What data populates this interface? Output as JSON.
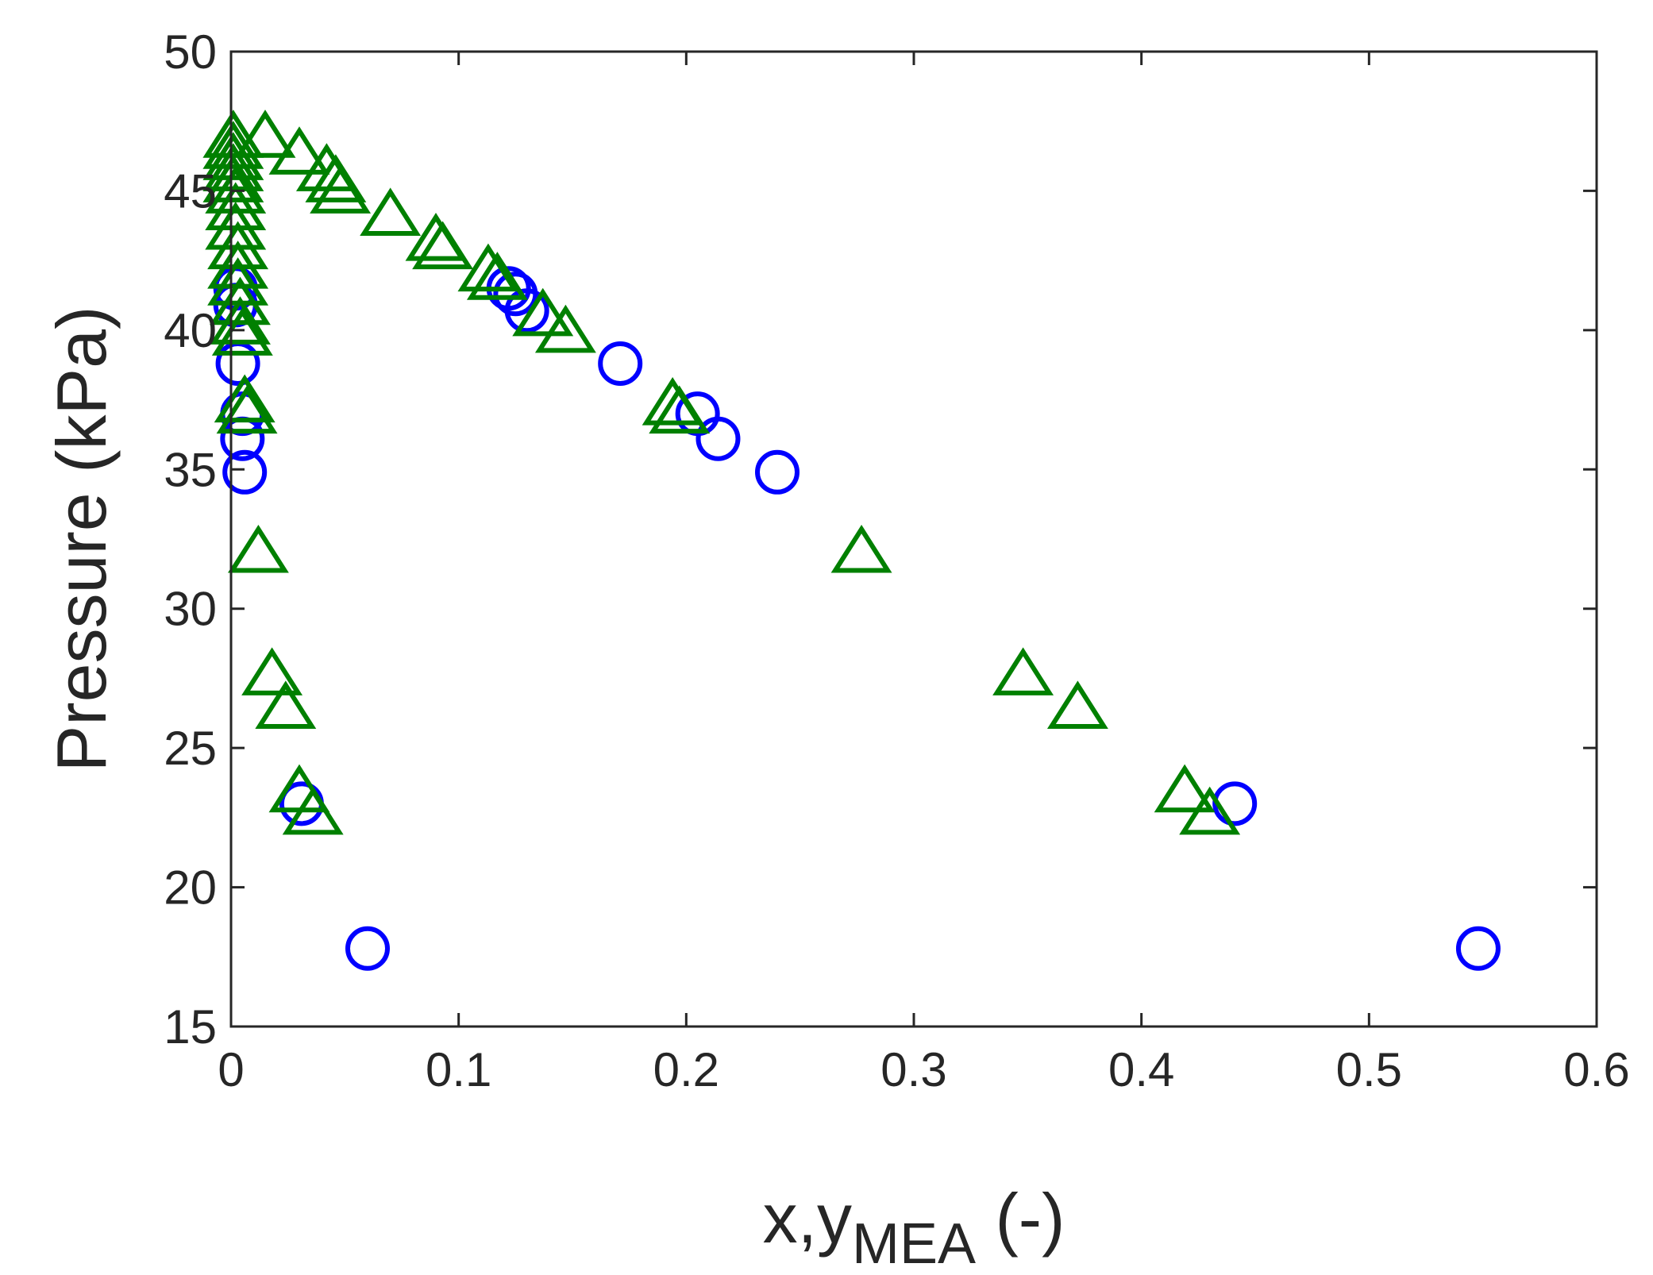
{
  "chart_data": {
    "type": "scatter",
    "title": "",
    "xlabel": "x,y",
    "xlabel_subscript": "MEA",
    "xlabel_suffix": " (-)",
    "ylabel": "Pressure (kPa)",
    "xlim": [
      0,
      0.6
    ],
    "ylim": [
      15,
      50
    ],
    "grid": false,
    "x_ticks": [
      0,
      0.1,
      0.2,
      0.3,
      0.4,
      0.5,
      0.6
    ],
    "x_tick_labels": [
      "0",
      "0.1",
      "0.2",
      "0.3",
      "0.4",
      "0.5",
      "0.6"
    ],
    "y_ticks": [
      15,
      20,
      25,
      30,
      35,
      40,
      45,
      50
    ],
    "y_tick_labels": [
      "15",
      "20",
      "25",
      "30",
      "35",
      "40",
      "45",
      "50"
    ],
    "series": [
      {
        "name": "circles",
        "marker": "circle",
        "color": "#0000ff",
        "points": [
          {
            "x": 0.002,
            "y": 41.5
          },
          {
            "x": 0.002,
            "y": 40.9
          },
          {
            "x": 0.003,
            "y": 38.8
          },
          {
            "x": 0.005,
            "y": 37.0
          },
          {
            "x": 0.005,
            "y": 36.1
          },
          {
            "x": 0.006,
            "y": 34.9
          },
          {
            "x": 0.031,
            "y": 23.0
          },
          {
            "x": 0.06,
            "y": 17.8
          },
          {
            "x": 0.122,
            "y": 41.5
          },
          {
            "x": 0.125,
            "y": 41.3
          },
          {
            "x": 0.13,
            "y": 40.7
          },
          {
            "x": 0.171,
            "y": 38.8
          },
          {
            "x": 0.205,
            "y": 37.0
          },
          {
            "x": 0.214,
            "y": 36.1
          },
          {
            "x": 0.24,
            "y": 34.9
          },
          {
            "x": 0.441,
            "y": 23.0
          },
          {
            "x": 0.548,
            "y": 17.8
          }
        ]
      },
      {
        "name": "triangles",
        "marker": "triangle",
        "color": "#008000",
        "points": [
          {
            "x": 0.001,
            "y": 46.9
          },
          {
            "x": 0.001,
            "y": 46.5
          },
          {
            "x": 0.001,
            "y": 46.1
          },
          {
            "x": 0.001,
            "y": 45.7
          },
          {
            "x": 0.001,
            "y": 45.3
          },
          {
            "x": 0.002,
            "y": 44.9
          },
          {
            "x": 0.002,
            "y": 44.3
          },
          {
            "x": 0.002,
            "y": 43.6
          },
          {
            "x": 0.003,
            "y": 42.9
          },
          {
            "x": 0.003,
            "y": 42.2
          },
          {
            "x": 0.003,
            "y": 41.6
          },
          {
            "x": 0.004,
            "y": 40.9
          },
          {
            "x": 0.004,
            "y": 40.2
          },
          {
            "x": 0.005,
            "y": 39.8
          },
          {
            "x": 0.006,
            "y": 37.4
          },
          {
            "x": 0.007,
            "y": 37.0
          },
          {
            "x": 0.012,
            "y": 32.0
          },
          {
            "x": 0.018,
            "y": 27.6
          },
          {
            "x": 0.024,
            "y": 26.4
          },
          {
            "x": 0.03,
            "y": 23.4
          },
          {
            "x": 0.036,
            "y": 22.6
          },
          {
            "x": 0.015,
            "y": 46.9
          },
          {
            "x": 0.03,
            "y": 46.3
          },
          {
            "x": 0.042,
            "y": 45.7
          },
          {
            "x": 0.046,
            "y": 45.3
          },
          {
            "x": 0.048,
            "y": 44.9
          },
          {
            "x": 0.07,
            "y": 44.1
          },
          {
            "x": 0.09,
            "y": 43.2
          },
          {
            "x": 0.093,
            "y": 42.9
          },
          {
            "x": 0.113,
            "y": 42.1
          },
          {
            "x": 0.117,
            "y": 41.8
          },
          {
            "x": 0.137,
            "y": 40.5
          },
          {
            "x": 0.147,
            "y": 39.9
          },
          {
            "x": 0.194,
            "y": 37.3
          },
          {
            "x": 0.197,
            "y": 37.0
          },
          {
            "x": 0.277,
            "y": 32.0
          },
          {
            "x": 0.348,
            "y": 27.6
          },
          {
            "x": 0.372,
            "y": 26.4
          },
          {
            "x": 0.419,
            "y": 23.4
          },
          {
            "x": 0.43,
            "y": 22.6
          }
        ]
      }
    ]
  }
}
